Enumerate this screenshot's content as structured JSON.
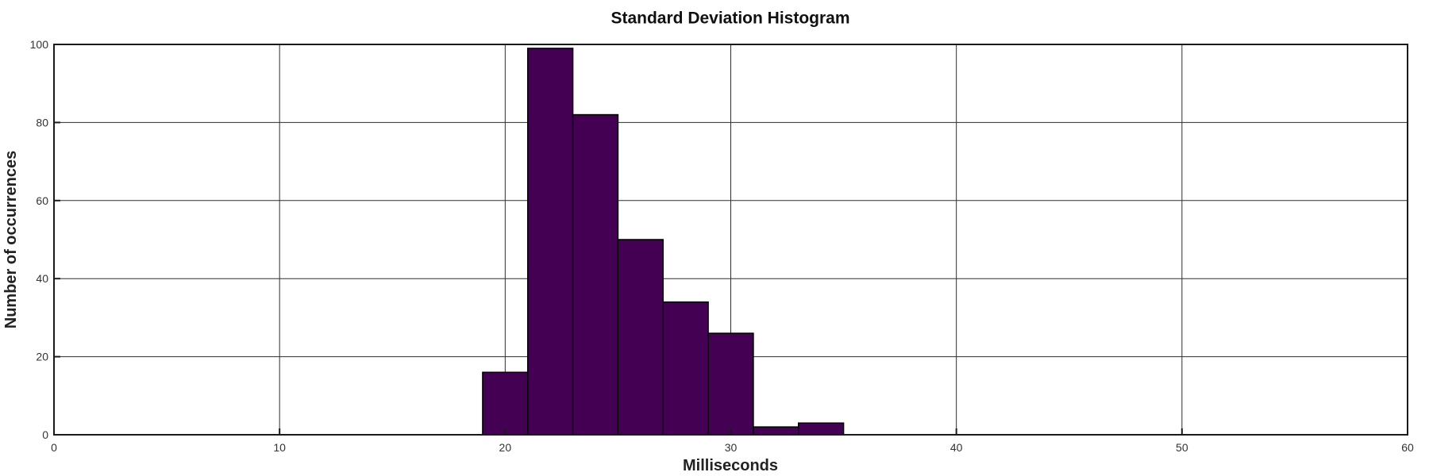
{
  "chart_data": {
    "type": "histogram",
    "title": "Standard Deviation Histogram",
    "xlabel": "Milliseconds",
    "ylabel": "Number of occurrences",
    "xlim": [
      0,
      60
    ],
    "ylim": [
      0,
      100
    ],
    "xticks": [
      0,
      10,
      20,
      30,
      40,
      50,
      60
    ],
    "yticks": [
      0,
      20,
      40,
      60,
      80,
      100
    ],
    "bin_edges": [
      19,
      21,
      23,
      25,
      27,
      29,
      31,
      33,
      35
    ],
    "counts": [
      16,
      99,
      82,
      50,
      34,
      26,
      2,
      3
    ],
    "grid": true,
    "legend": "none",
    "colors": {
      "bar_fill": "#440154",
      "bar_edge": "#000000",
      "grid_line": "#2e2e2e",
      "axis_box": "#1a1a1a",
      "tick_text": "#333333",
      "title_text": "#111111",
      "background": "#ffffff"
    }
  }
}
